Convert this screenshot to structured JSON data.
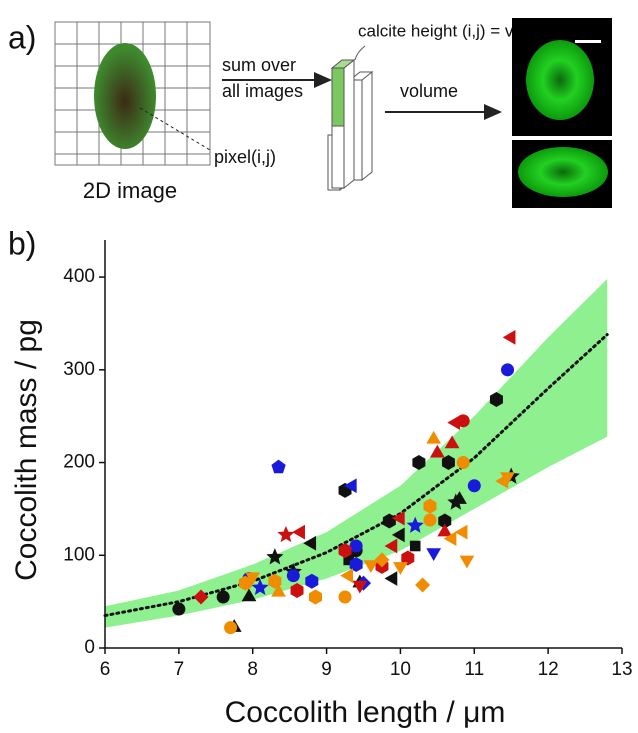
{
  "panel_a": {
    "label": "a)",
    "image_caption": "2D image",
    "sum_line1": "sum over",
    "sum_line2": "all images",
    "pixel": "pixel(i,j)",
    "height": "calcite height (i,j) = vt(i,j)",
    "volume": "volume"
  },
  "chart_data": {
    "type": "scatter",
    "panel_label": "b)",
    "x_label": "Coccolith length / μm",
    "y_label": "Coccolith mass / pg",
    "xlim": [
      6,
      13
    ],
    "xticks": [
      6,
      7,
      8,
      9,
      10,
      11,
      12,
      13
    ],
    "ylim": [
      0,
      440
    ],
    "yticks": [
      0,
      100,
      200,
      300,
      400
    ],
    "fit": {
      "color": "#111111",
      "band_color": "#8ef08e",
      "x": [
        6,
        7,
        8,
        9,
        10,
        11,
        12,
        12.8
      ],
      "values": [
        35,
        50,
        72,
        103,
        145,
        205,
        280,
        338
      ],
      "lower": [
        22,
        35,
        52,
        75,
        105,
        150,
        195,
        228
      ],
      "upper": [
        45,
        62,
        90,
        125,
        175,
        250,
        335,
        398
      ]
    },
    "series": [
      {
        "color": "#111111",
        "x": [
          7.0,
          7.6,
          7.75,
          7.95,
          8.3,
          8.55,
          8.8,
          9.25,
          9.3,
          9.4,
          9.85,
          9.9,
          10.0,
          10.2,
          10.25,
          10.6,
          10.65,
          10.8,
          10.75,
          11.3,
          11.5,
          9.45
        ],
        "values": [
          42,
          55,
          22,
          55,
          98,
          82,
          113,
          170,
          95,
          105,
          137,
          75,
          122,
          110,
          200,
          137,
          200,
          160,
          157,
          268,
          185,
          70
        ],
        "markers": [
          "circle",
          "circle",
          "triangle",
          "triangle",
          "star",
          "star",
          "triangle-left",
          "hexagon",
          "square",
          "circle",
          "hexagon",
          "triangle-left",
          "triangle-left",
          "square",
          "hexagon",
          "hexagon",
          "hexagon",
          "triangle",
          "star",
          "hexagon",
          "star",
          "triangle"
        ]
      },
      {
        "color": "#1a1adb",
        "x": [
          7.95,
          8.1,
          8.35,
          8.55,
          8.8,
          9.35,
          9.4,
          9.4,
          9.5,
          10.2,
          10.45,
          11.0,
          11.45
        ],
        "values": [
          75,
          65,
          195,
          78,
          72,
          175,
          110,
          90,
          70,
          132,
          103,
          175,
          300
        ],
        "markers": [
          "circle",
          "star",
          "pentagon",
          "circle",
          "hexagon",
          "triangle-left",
          "circle",
          "hexagon",
          "diamond",
          "star",
          "triangle-down",
          "circle",
          "circle"
        ]
      },
      {
        "color": "#cc1010",
        "x": [
          7.3,
          8.45,
          8.6,
          8.65,
          9.25,
          9.45,
          9.75,
          9.9,
          10.1,
          10.5,
          10.6,
          10.7,
          10.85,
          10.75,
          11.5,
          10.0
        ],
        "values": [
          55,
          122,
          62,
          125,
          105,
          68,
          88,
          110,
          97,
          210,
          125,
          220,
          245,
          243,
          335,
          140
        ],
        "markers": [
          "diamond",
          "star",
          "hexagon",
          "triangle-left",
          "hexagon",
          "triangle-down",
          "hexagon",
          "triangle-left",
          "hexagon",
          "triangle",
          "triangle",
          "triangle",
          "circle",
          "triangle-left",
          "triangle-left",
          "triangle-left"
        ]
      },
      {
        "color": "#f08c00",
        "x": [
          7.7,
          7.9,
          8.0,
          8.3,
          8.35,
          8.85,
          9.25,
          9.3,
          9.6,
          9.75,
          10.0,
          10.3,
          10.4,
          10.4,
          10.45,
          10.7,
          10.85,
          10.9,
          10.85,
          11.4,
          11.45
        ],
        "values": [
          22,
          70,
          77,
          72,
          60,
          55,
          55,
          78,
          90,
          95,
          88,
          68,
          138,
          153,
          225,
          118,
          200,
          95,
          125,
          180,
          185
        ],
        "markers": [
          "circle",
          "hexagon",
          "triangle-down",
          "hexagon",
          "triangle",
          "hexagon",
          "circle",
          "triangle-left",
          "triangle-down",
          "diamond",
          "triangle-down",
          "diamond",
          "circle",
          "hexagon",
          "triangle",
          "triangle-left",
          "circle",
          "triangle-down",
          "triangle-left",
          "triangle-left",
          "triangle-down"
        ]
      }
    ]
  }
}
